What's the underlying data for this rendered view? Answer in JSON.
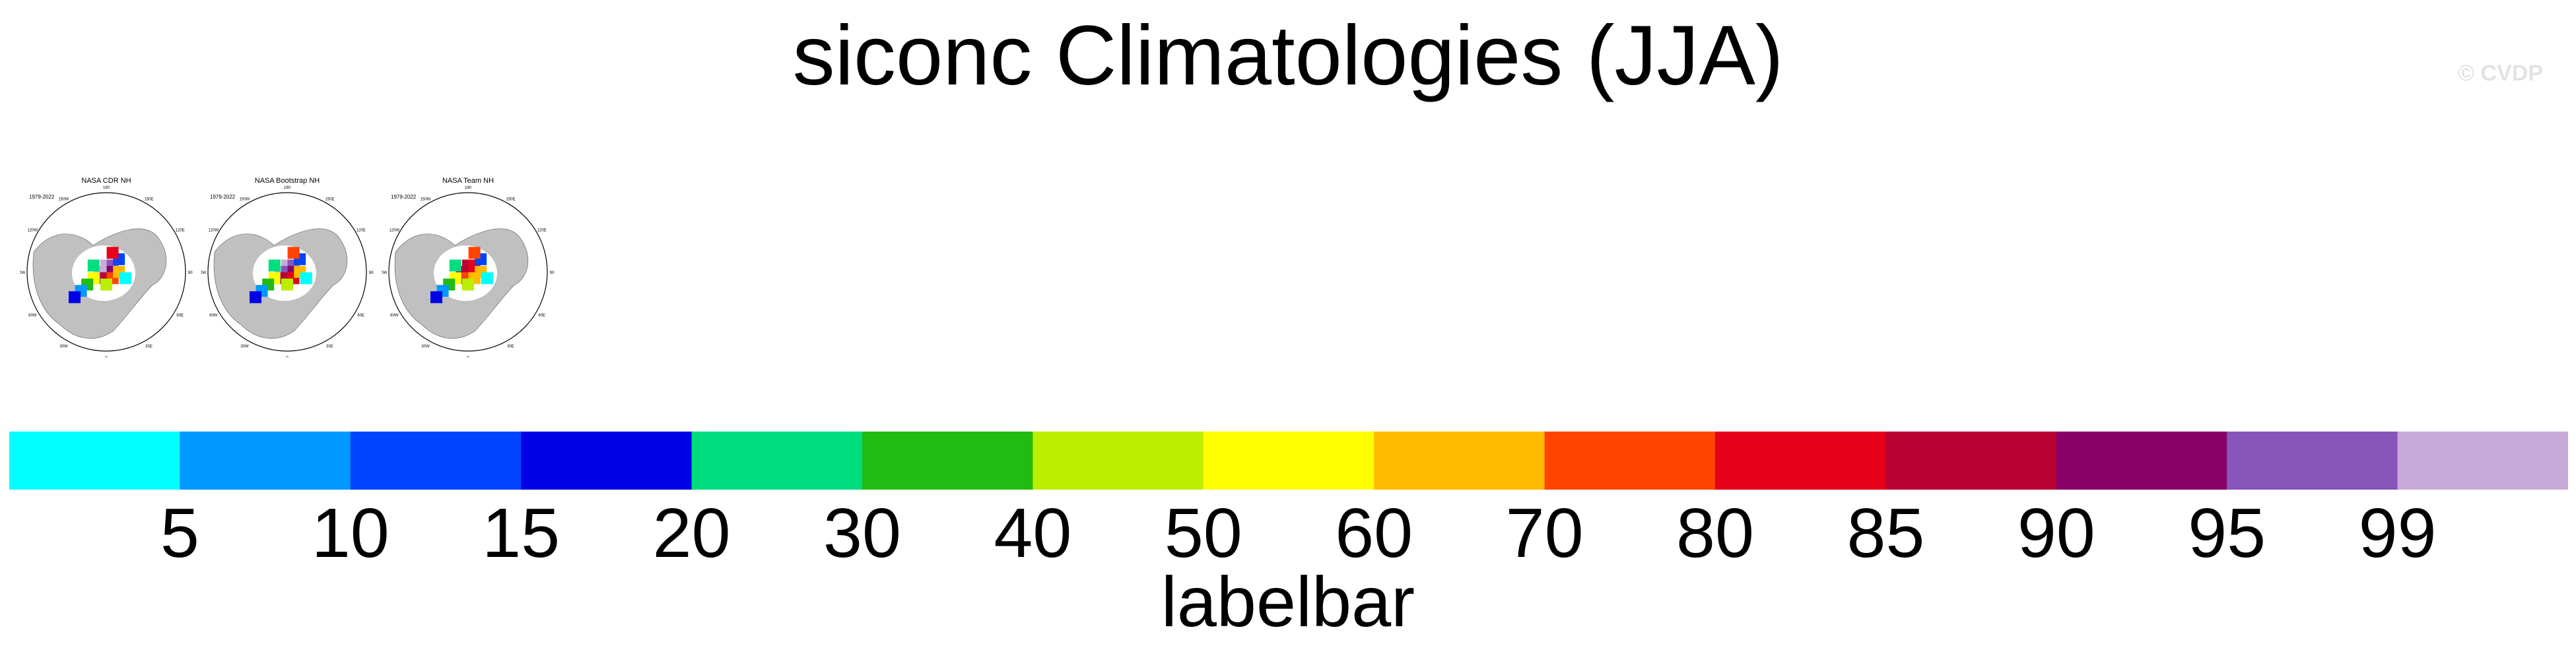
{
  "header": {
    "title": "siconc Climatologies (JJA)",
    "watermark": "© CVDP"
  },
  "panels": [
    {
      "title": "NASA CDR NH",
      "years": "1979-2022"
    },
    {
      "title": "NASA Bootstrap NH",
      "years": "1979-2022"
    },
    {
      "title": "NASA Team NH",
      "years": "1979-2022"
    }
  ],
  "map_labels": [
    "180",
    "150E",
    "120E",
    "90E",
    "60E",
    "30E",
    "0",
    "30W",
    "60W",
    "90W",
    "120W",
    "150W"
  ],
  "chart_data": {
    "type": "heatmap",
    "title": "siconc Climatologies (JJA)",
    "panels": [
      "NASA CDR NH",
      "NASA Bootstrap NH",
      "NASA Team NH"
    ],
    "colorbar": {
      "title": "labelbar",
      "levels": [
        5,
        10,
        15,
        20,
        30,
        40,
        50,
        60,
        70,
        80,
        85,
        90,
        95,
        99
      ],
      "colors": [
        "#00ffff",
        "#0099ff",
        "#0044ff",
        "#0000e6",
        "#00dd7f",
        "#22bb11",
        "#bbee00",
        "#ffff00",
        "#ffbb00",
        "#ff4400",
        "#e60019",
        "#bb0033",
        "#880066",
        "#8855bb",
        "#c8aad8"
      ]
    }
  }
}
